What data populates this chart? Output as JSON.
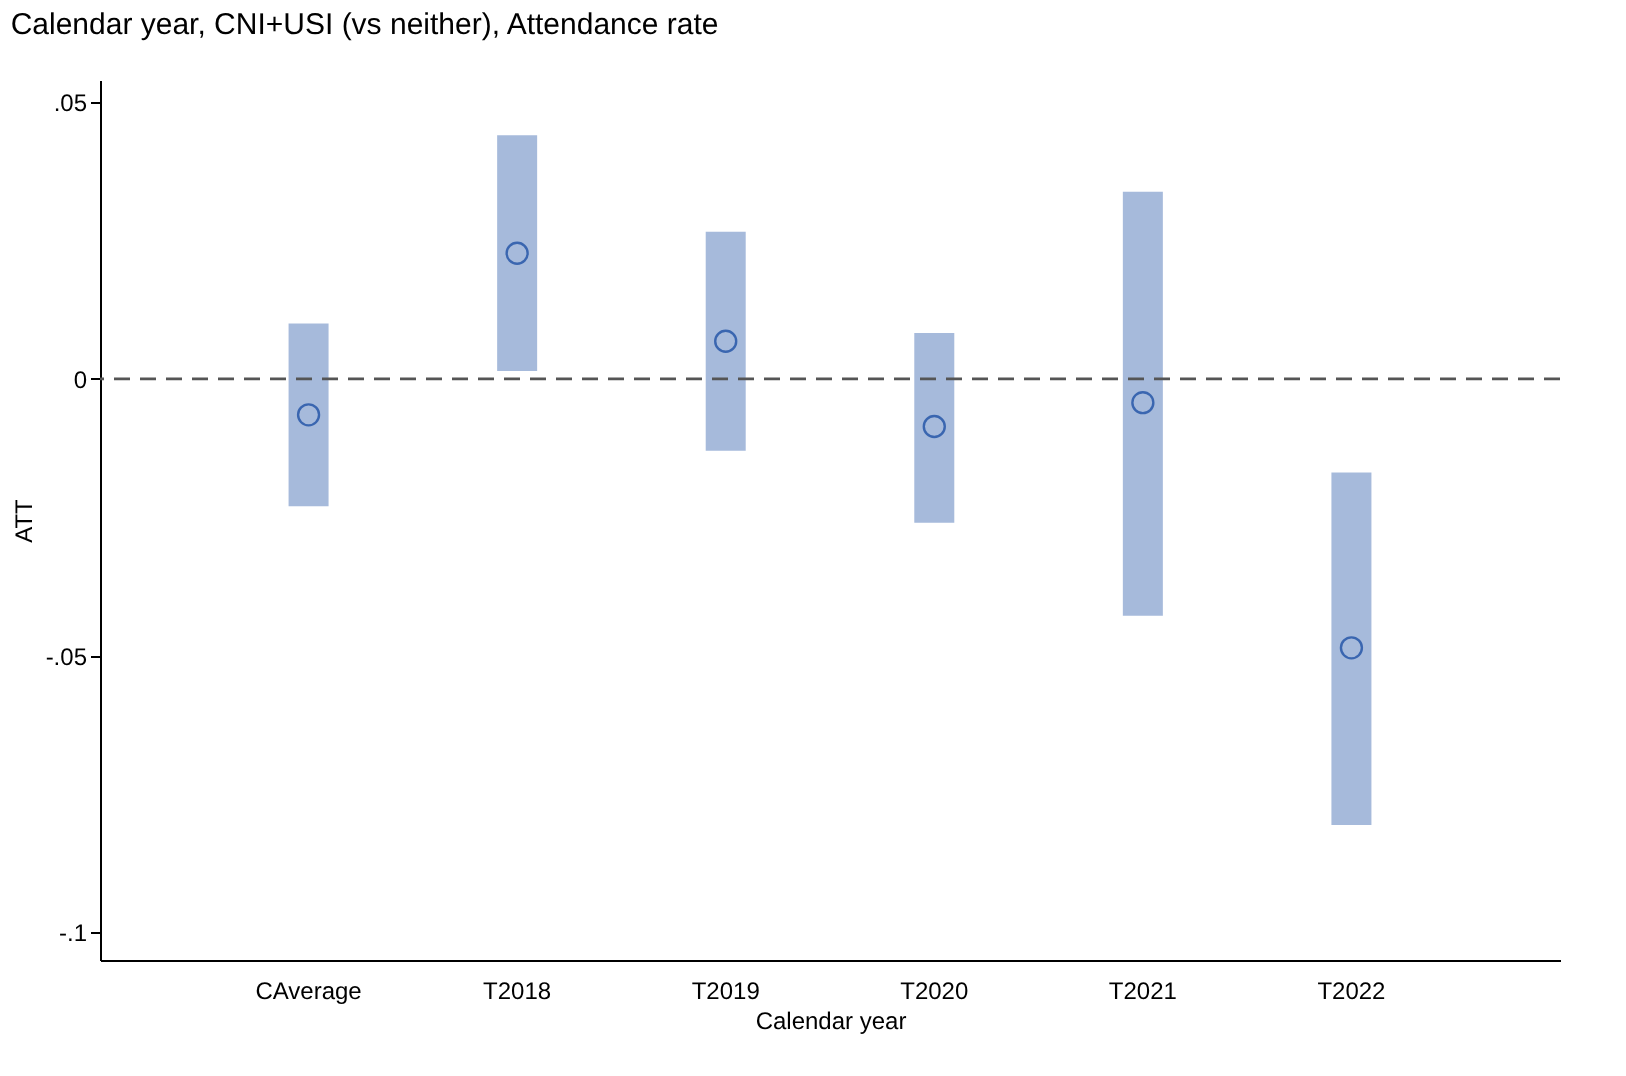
{
  "chart_data": {
    "type": "scatter",
    "title": "Calendar year, CNI+USI (vs neither), Attendance rate",
    "xlabel": "Calendar year",
    "ylabel": "ATT",
    "categories": [
      "CAverage",
      "T2018",
      "T2019",
      "T2020",
      "T2021",
      "T2022"
    ],
    "series": [
      {
        "color": "#3a66b0",
        "values": [
          -0.0065,
          0.0227,
          0.0068,
          -0.0086,
          -0.0043,
          -0.0486
        ],
        "errors": [
          [
            -0.023,
            0.01
          ],
          [
            0.0014,
            0.044
          ],
          [
            -0.013,
            0.0266
          ],
          [
            -0.026,
            0.0083
          ],
          [
            -0.0428,
            0.0338
          ],
          [
            -0.0806,
            -0.0169
          ]
        ]
      }
    ],
    "ylim": [
      -0.105,
      0.054
    ],
    "yticks": [
      {
        "value": 0.05,
        "label": ".05"
      },
      0,
      {
        "value": -0.05,
        "label": "-.05"
      },
      {
        "value": -0.1,
        "label": "-.1"
      }
    ],
    "ref_lines": [
      {
        "axis": "y",
        "value": 0,
        "color": "#555555",
        "line_style": "dashed"
      }
    ],
    "marker": "circle",
    "grid": false
  }
}
